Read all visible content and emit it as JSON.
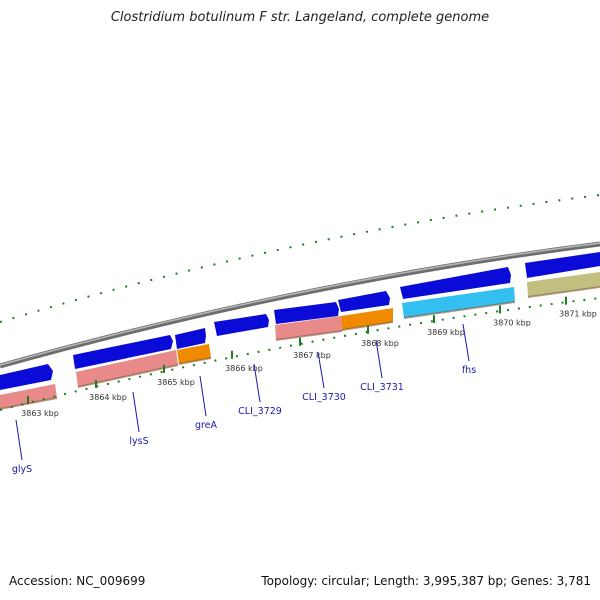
{
  "title": "Clostridium botulinum F str. Langeland, complete genome",
  "footer": {
    "accession": "Accession: NC_009699",
    "summary": "Topology: circular; Length: 3,995,387 bp; Genes: 3,781"
  },
  "colors": {
    "backbone": "#8a8a8a",
    "cds": "#0b0bd8",
    "rrna": "#e88a8a",
    "trna": "#f08a00",
    "misc": "#33c0f0",
    "other": "#c2c080",
    "ticks": "#1e7d1e",
    "label_line": "#1a1aa8"
  },
  "kbp_labels": [
    {
      "text": "3863 kbp",
      "pos": 40
    },
    {
      "text": "3864 kbp",
      "pos": 108
    },
    {
      "text": "3865 kbp",
      "pos": 176
    },
    {
      "text": "3866 kbp",
      "pos": 244
    },
    {
      "text": "3867 kbp",
      "pos": 312
    },
    {
      "text": "3868 kbp",
      "pos": 380
    },
    {
      "text": "3869 kbp",
      "pos": 446
    },
    {
      "text": "3870 kbp",
      "pos": 512
    },
    {
      "text": "3871 kbp",
      "pos": 578
    }
  ],
  "gene_labels": [
    {
      "text": "glyS",
      "pos": 16
    },
    {
      "text": "lysS",
      "pos": 133
    },
    {
      "text": "greA",
      "pos": 200
    },
    {
      "text": "CLI_3729",
      "pos": 254
    },
    {
      "text": "CLI_3730",
      "pos": 318
    },
    {
      "text": "CLI_3731",
      "pos": 376
    },
    {
      "text": "fhs",
      "pos": 463
    }
  ]
}
